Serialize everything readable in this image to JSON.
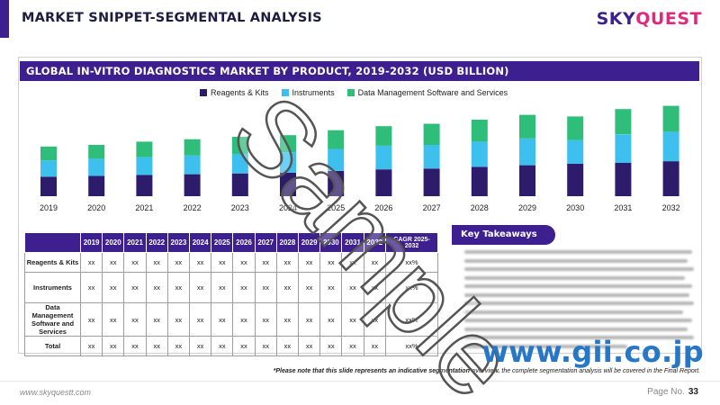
{
  "header": {
    "title": "MARKET SNIPPET-SEGMENTAL ANALYSIS",
    "logo_part1": "SKY",
    "logo_part2": "QUEST",
    "accent_color": "#3d1f8f",
    "logo_pink": "#e0287d"
  },
  "chart_data": {
    "type": "bar",
    "stacked": true,
    "title": "GLOBAL IN-VITRO DIAGNOSTICS MARKET BY PRODUCT, 2019-2032 (USD BILLION)",
    "categories": [
      "2019",
      "2020",
      "2021",
      "2022",
      "2023",
      "2024",
      "2025",
      "2026",
      "2027",
      "2028",
      "2029",
      "2030",
      "2031",
      "2032"
    ],
    "series": [
      {
        "name": "Reagents & Kits",
        "color": "#2d1b6b",
        "values": [
          24,
          25,
          26,
          27,
          28,
          29,
          31,
          33,
          34,
          36,
          38,
          40,
          41,
          43
        ]
      },
      {
        "name": "Instruments",
        "color": "#3ec0ef",
        "values": [
          20,
          21,
          22,
          23,
          24,
          25,
          27,
          29,
          29,
          31,
          33,
          29,
          35,
          36
        ]
      },
      {
        "name": "Data Management Software and Services",
        "color": "#2fbd7a",
        "values": [
          17,
          17,
          19,
          20,
          21,
          21,
          23,
          24,
          26,
          27,
          29,
          29,
          31,
          32
        ]
      }
    ],
    "ylim": [
      0,
      115
    ],
    "grid": false,
    "legend_position": "top-center"
  },
  "table": {
    "headers": [
      "",
      "2019",
      "2020",
      "2021",
      "2022",
      "2023",
      "2024",
      "2025",
      "2026",
      "2027",
      "2028",
      "2029",
      "2030",
      "2031",
      "2032",
      "CAGR 2025-2032"
    ],
    "rows": [
      {
        "label": "Reagents & Kits",
        "values": [
          "xx",
          "xx",
          "xx",
          "xx",
          "xx",
          "xx",
          "xx",
          "xx",
          "xx",
          "xx",
          "xx",
          "xx",
          "xx",
          "xx"
        ],
        "cagr": "xx%"
      },
      {
        "label": "Instruments",
        "values": [
          "xx",
          "xx",
          "xx",
          "xx",
          "xx",
          "xx",
          "xx",
          "xx",
          "xx",
          "xx",
          "xx",
          "xx",
          "xx",
          "xx"
        ],
        "cagr": "xx%"
      },
      {
        "label": "Data Management Software and Services",
        "values": [
          "xx",
          "xx",
          "xx",
          "xx",
          "xx",
          "xx",
          "xx",
          "xx",
          "xx",
          "xx",
          "xx",
          "xx",
          "xx",
          "xx"
        ],
        "cagr": "xx%"
      },
      {
        "label": "Total",
        "values": [
          "xx",
          "xx",
          "xx",
          "xx",
          "xx",
          "xx",
          "xx",
          "xx",
          "xx",
          "xx",
          "xx",
          "xx",
          "xx",
          "xx"
        ],
        "cagr": "xx%"
      }
    ]
  },
  "takeaways": {
    "title": "Key Takeaways"
  },
  "note": {
    "bold": "*Please note that this slide represents an indicative segmentation overview.",
    "rest": " the complete segmentation analysis will be covered in the Final Report."
  },
  "footer": {
    "website": "www.skyquestt.com",
    "page_label": "Page No.",
    "page_number": "33"
  },
  "overlays": {
    "watermark": "Sample",
    "gii": "www.gii.co.jp"
  }
}
